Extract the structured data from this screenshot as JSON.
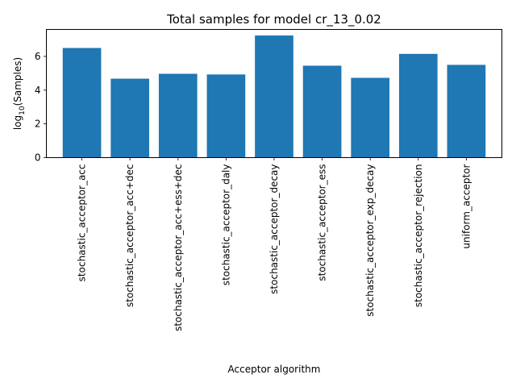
{
  "chart_data": {
    "type": "bar",
    "title": "Total samples for model cr_13_0.02",
    "xlabel": "Acceptor algorithm",
    "ylabel": {
      "prefix": "log",
      "subscript": "10",
      "suffix": "(Samples)"
    },
    "categories": [
      "stochastic_acceptor_acc",
      "stochastic_acceptor_acc+dec",
      "stochastic_acceptor_acc+ess+dec",
      "stochastic_acceptor_daly",
      "stochastic_acceptor_decay",
      "stochastic_acceptor_ess",
      "stochastic_acceptor_exp_decay",
      "stochastic_acceptor_rejection",
      "uniform_acceptor"
    ],
    "values": [
      6.5,
      4.68,
      4.97,
      4.93,
      7.24,
      5.45,
      4.73,
      6.15,
      5.5
    ],
    "ylim": [
      0,
      7.6
    ],
    "yticks": [
      0,
      2,
      4,
      6
    ],
    "bar_color": "#1f77b4",
    "grid": false,
    "legend": "none"
  }
}
